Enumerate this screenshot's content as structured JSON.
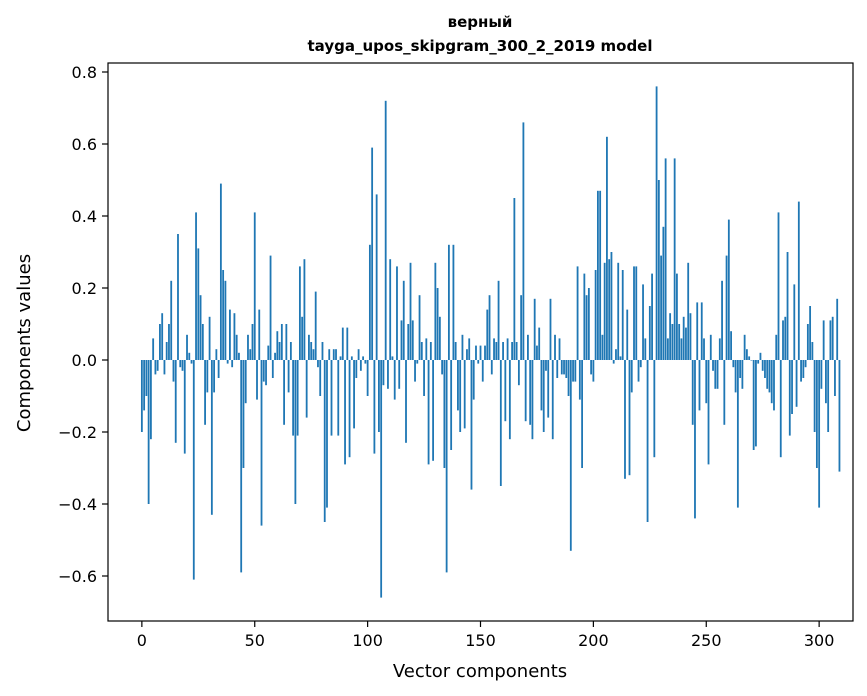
{
  "chart_data": {
    "type": "bar",
    "title": "верный",
    "subtitle": "tayga_upos_skipgram_300_2_2019 model",
    "xlabel": "Vector components",
    "ylabel": "Components values",
    "xlim": [
      -15,
      315
    ],
    "ylim": [
      -0.725,
      0.825
    ],
    "xticks": [
      0,
      50,
      100,
      150,
      200,
      250,
      300
    ],
    "xtick_labels": [
      "0",
      "50",
      "100",
      "150",
      "200",
      "250",
      "300"
    ],
    "yticks": [
      -0.6,
      -0.4,
      -0.2,
      0.0,
      0.2,
      0.4,
      0.6,
      0.8
    ],
    "ytick_labels": [
      "−0.6",
      "−0.4",
      "−0.2",
      "0.0",
      "0.2",
      "0.4",
      "0.6",
      "0.8"
    ],
    "bar_color": "#1f77b4",
    "values": [
      -0.2,
      -0.14,
      -0.1,
      -0.4,
      -0.22,
      0.06,
      -0.04,
      -0.03,
      0.1,
      0.13,
      -0.04,
      0.05,
      0.1,
      0.22,
      -0.06,
      -0.23,
      0.35,
      -0.02,
      -0.03,
      -0.26,
      0.07,
      0.02,
      -0.01,
      -0.61,
      0.41,
      0.31,
      0.18,
      0.1,
      -0.18,
      -0.09,
      0.12,
      -0.43,
      -0.09,
      0.03,
      -0.05,
      0.49,
      0.25,
      0.22,
      -0.01,
      0.14,
      -0.02,
      0.13,
      0.07,
      0.02,
      -0.59,
      -0.3,
      -0.12,
      0.07,
      0.03,
      0.1,
      0.41,
      -0.11,
      0.14,
      -0.46,
      -0.06,
      -0.07,
      0.04,
      0.29,
      -0.05,
      0.02,
      0.08,
      0.05,
      0.1,
      -0.18,
      0.1,
      -0.09,
      0.05,
      -0.21,
      -0.4,
      -0.21,
      0.26,
      0.12,
      0.28,
      -0.16,
      0.07,
      0.05,
      0.03,
      0.19,
      -0.02,
      -0.1,
      0.05,
      -0.45,
      -0.41,
      0.03,
      -0.21,
      0.03,
      0.03,
      -0.21,
      0.01,
      0.09,
      -0.29,
      0.09,
      -0.27,
      0.01,
      -0.19,
      -0.05,
      0.03,
      -0.03,
      0.01,
      -0.01,
      -0.1,
      0.32,
      0.59,
      -0.26,
      0.46,
      -0.2,
      -0.66,
      -0.07,
      0.72,
      -0.08,
      0.28,
      0.01,
      -0.11,
      0.26,
      -0.08,
      0.11,
      0.22,
      -0.23,
      0.1,
      0.27,
      0.11,
      -0.06,
      -0.01,
      0.18,
      0.05,
      -0.1,
      0.06,
      -0.29,
      0.05,
      -0.28,
      0.27,
      0.2,
      0.12,
      -0.04,
      -0.3,
      -0.59,
      0.32,
      -0.25,
      0.32,
      0.05,
      -0.14,
      -0.2,
      0.07,
      -0.19,
      0.03,
      0.06,
      -0.36,
      -0.11,
      0.04,
      -0.01,
      0.04,
      -0.06,
      0.04,
      0.14,
      0.18,
      -0.04,
      0.06,
      0.05,
      0.22,
      -0.35,
      0.05,
      -0.17,
      0.06,
      -0.22,
      0.05,
      0.45,
      0.05,
      -0.07,
      0.18,
      0.66,
      -0.17,
      0.07,
      -0.18,
      -0.22,
      0.17,
      0.04,
      0.09,
      -0.14,
      -0.2,
      -0.03,
      -0.16,
      0.17,
      -0.22,
      0.07,
      -0.05,
      0.06,
      -0.04,
      -0.04,
      -0.05,
      -0.1,
      -0.53,
      -0.06,
      -0.06,
      0.26,
      -0.11,
      -0.3,
      0.24,
      0.18,
      0.2,
      -0.04,
      -0.06,
      0.25,
      0.47,
      0.47,
      0.07,
      0.27,
      0.62,
      0.28,
      0.3,
      -0.01,
      0.03,
      0.27,
      0.01,
      0.25,
      -0.33,
      0.14,
      -0.32,
      -0.09,
      0.26,
      0.26,
      -0.06,
      -0.02,
      0.21,
      0.06,
      -0.45,
      0.15,
      0.24,
      -0.27,
      0.76,
      0.5,
      0.29,
      0.37,
      0.56,
      0.06,
      0.13,
      0.1,
      0.56,
      0.24,
      0.1,
      0.06,
      0.12,
      0.09,
      0.27,
      0.13,
      -0.18,
      -0.44,
      0.16,
      -0.14,
      0.16,
      0.06,
      -0.12,
      -0.29,
      0.07,
      -0.03,
      -0.08,
      -0.08,
      0.06,
      0.22,
      -0.18,
      0.29,
      0.39,
      0.08,
      -0.02,
      -0.09,
      -0.41,
      -0.05,
      -0.08,
      0.07,
      0.03,
      0.01,
      0.0,
      -0.25,
      -0.24,
      -0.01,
      0.02,
      -0.03,
      -0.05,
      -0.08,
      -0.09,
      -0.12,
      -0.14,
      0.07,
      0.41,
      -0.27,
      0.11,
      0.12,
      0.3,
      -0.21,
      -0.15,
      0.21,
      -0.13,
      0.44,
      -0.06,
      -0.05,
      -0.02,
      0.1,
      0.15,
      0.05,
      -0.2,
      -0.3,
      -0.41,
      -0.08,
      0.11,
      -0.12,
      -0.2,
      0.11,
      0.12,
      -0.1,
      0.17,
      -0.31
    ]
  }
}
